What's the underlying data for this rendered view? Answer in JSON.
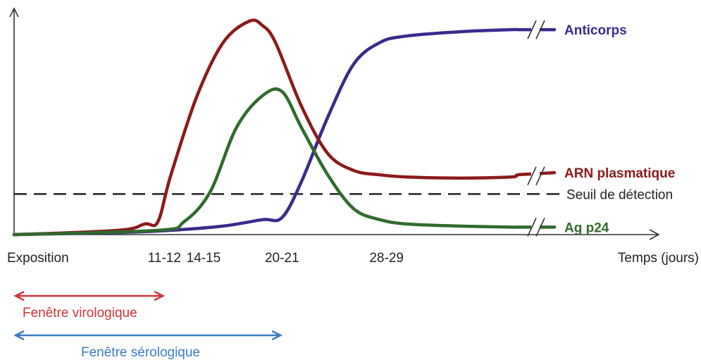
{
  "chart_data": {
    "type": "line",
    "title": "",
    "xlabel": "Temps (jours)",
    "ylabel": "",
    "x_tick_labels": [
      {
        "label": "Exposition",
        "x": 0
      },
      {
        "label": "11-12",
        "x": 11.5
      },
      {
        "label": "14-15",
        "x": 14.5
      },
      {
        "label": "20-21",
        "x": 20.5
      },
      {
        "label": "28-29",
        "x": 28.5
      }
    ],
    "y_axis_labeled": false,
    "axis_break": true,
    "threshold": {
      "label": "Seuil de détection",
      "level": 0.19,
      "style": "dashed",
      "color": "#222222"
    },
    "series": [
      {
        "name": "Anticorps",
        "color": "#3a2a8c",
        "points": [
          [
            0,
            0.0
          ],
          [
            8,
            0.01
          ],
          [
            12,
            0.02
          ],
          [
            16,
            0.04
          ],
          [
            19,
            0.07
          ],
          [
            20.5,
            0.08
          ],
          [
            22,
            0.25
          ],
          [
            24,
            0.55
          ],
          [
            26,
            0.8
          ],
          [
            28,
            0.9
          ],
          [
            30,
            0.93
          ],
          [
            34,
            0.95
          ],
          [
            38,
            0.96
          ],
          [
            42,
            0.96
          ],
          [
            46,
            0.96
          ],
          [
            50,
            0.96
          ]
        ]
      },
      {
        "name": "ARN plasmatique",
        "color": "#8b1a1a",
        "points": [
          [
            0,
            0.0
          ],
          [
            8,
            0.02
          ],
          [
            10,
            0.05
          ],
          [
            11,
            0.06
          ],
          [
            12,
            0.28
          ],
          [
            14,
            0.65
          ],
          [
            16,
            0.9
          ],
          [
            18,
            1.0
          ],
          [
            19,
            0.98
          ],
          [
            20,
            0.9
          ],
          [
            22,
            0.6
          ],
          [
            24,
            0.38
          ],
          [
            26,
            0.3
          ],
          [
            28,
            0.28
          ],
          [
            30,
            0.27
          ],
          [
            34,
            0.265
          ],
          [
            38,
            0.27
          ],
          [
            42,
            0.28
          ],
          [
            46,
            0.285
          ],
          [
            50,
            0.29
          ]
        ]
      },
      {
        "name": "Ag p24",
        "color": "#2f6b2c",
        "points": [
          [
            0,
            0.0
          ],
          [
            11,
            0.02
          ],
          [
            13,
            0.06
          ],
          [
            15,
            0.2
          ],
          [
            17,
            0.5
          ],
          [
            19,
            0.65
          ],
          [
            20.5,
            0.67
          ],
          [
            22,
            0.5
          ],
          [
            24,
            0.28
          ],
          [
            26,
            0.12
          ],
          [
            28,
            0.07
          ],
          [
            30,
            0.05
          ],
          [
            34,
            0.04
          ],
          [
            38,
            0.035
          ],
          [
            42,
            0.035
          ],
          [
            46,
            0.035
          ],
          [
            50,
            0.035
          ]
        ]
      }
    ],
    "windows": [
      {
        "label": "Fenêtre virologique",
        "from": 0,
        "to": 11.5,
        "color": "#d2333a"
      },
      {
        "label": "Fenêtre sérologique",
        "from": 0,
        "to": 20.5,
        "color": "#3a7cc4"
      }
    ]
  }
}
